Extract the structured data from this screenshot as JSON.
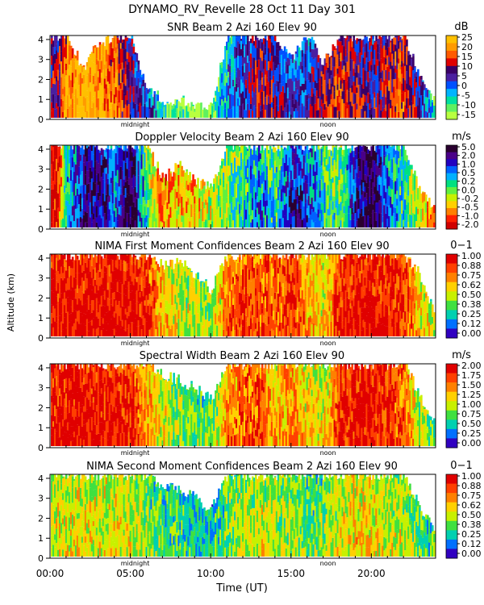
{
  "figure": {
    "title": "DYNAMO_RV_Revelle  28 Oct 11 Day 301",
    "ylabel": "Altitude (km)",
    "xlabel": "Time (UT)",
    "x_ticks": [
      "00:00",
      "05:00",
      "10:00",
      "15:00",
      "20:00"
    ],
    "y_ticks": [
      "0",
      "1",
      "2",
      "3",
      "4"
    ],
    "marker_labels": [
      "midnight",
      "noon"
    ]
  },
  "chart_data": [
    {
      "type": "heatmap",
      "title": "SNR Beam 2 Azi 160 Elev 90",
      "unit": "dB",
      "xlim": [
        0,
        24
      ],
      "ylim": [
        0,
        4.2
      ],
      "colorbar_labels": [
        "25",
        "20",
        "15",
        "10",
        "5",
        "0",
        "-5",
        "-10",
        "-15"
      ],
      "colors": [
        "#ffc000",
        "#ff9a00",
        "#ff5a00",
        "#e00000",
        "#3a0066",
        "#4a1fa0",
        "#0050ff",
        "#00b4ff",
        "#00e0a0",
        "#60f060",
        "#b8ff40"
      ],
      "profile": [
        {
          "x": 0.4,
          "top": 4.2,
          "v": 10
        },
        {
          "x": 1.0,
          "top": 4.2,
          "v": 20
        },
        {
          "x": 2.0,
          "top": 2.6,
          "v": 25
        },
        {
          "x": 3.0,
          "top": 3.8,
          "v": 22
        },
        {
          "x": 4.0,
          "top": 4.2,
          "v": 18
        },
        {
          "x": 5.0,
          "top": 4.2,
          "v": 8
        },
        {
          "x": 6.0,
          "top": 1.6,
          "v": 3
        },
        {
          "x": 7.0,
          "top": 0.9,
          "v": -5
        },
        {
          "x": 8.0,
          "top": 1.0,
          "v": -10
        },
        {
          "x": 9.0,
          "top": 0.8,
          "v": -12
        },
        {
          "x": 10.0,
          "top": 0.6,
          "v": -12
        },
        {
          "x": 11.0,
          "top": 4.2,
          "v": 0
        },
        {
          "x": 12.0,
          "top": 4.2,
          "v": 5
        },
        {
          "x": 13.0,
          "top": 4.2,
          "v": 12
        },
        {
          "x": 14.0,
          "top": 4.2,
          "v": 8
        },
        {
          "x": 15.0,
          "top": 3.0,
          "v": 3
        },
        {
          "x": 16.0,
          "top": 4.2,
          "v": 5
        },
        {
          "x": 17.0,
          "top": 2.8,
          "v": 12
        },
        {
          "x": 18.0,
          "top": 4.2,
          "v": 15
        },
        {
          "x": 19.0,
          "top": 4.2,
          "v": 10
        },
        {
          "x": 20.0,
          "top": 4.2,
          "v": 8
        },
        {
          "x": 21.0,
          "top": 4.2,
          "v": 12
        },
        {
          "x": 22.0,
          "top": 4.2,
          "v": 15
        },
        {
          "x": 23.0,
          "top": 2.0,
          "v": 5
        },
        {
          "x": 23.8,
          "top": 1.0,
          "v": -5
        }
      ]
    },
    {
      "type": "heatmap",
      "title": "Doppler Velocity Beam 2 Azi 160 Elev 90",
      "unit": "m/s",
      "xlim": [
        0,
        24
      ],
      "ylim": [
        0,
        4.2
      ],
      "colorbar_labels": [
        "5.0",
        "2.0",
        "1.0",
        "0.5",
        "0.2",
        "0.0",
        "-0.2",
        "-0.5",
        "-1.0",
        "-2.0"
      ],
      "colors": [
        "#2a0030",
        "#4a0088",
        "#2200c0",
        "#0060ff",
        "#00b0ff",
        "#00e080",
        "#60f040",
        "#c8f000",
        "#ffd000",
        "#ff8000",
        "#ff2000",
        "#d00000"
      ],
      "profile": [
        {
          "x": 0.4,
          "top": 4.2,
          "v": -1.5
        },
        {
          "x": 1.0,
          "top": 4.2,
          "v": 2.5
        },
        {
          "x": 2.0,
          "top": 4.2,
          "v": 4.0
        },
        {
          "x": 3.0,
          "top": 4.2,
          "v": 4.5
        },
        {
          "x": 4.0,
          "top": 4.2,
          "v": 3.0
        },
        {
          "x": 5.0,
          "top": 4.2,
          "v": 5.0
        },
        {
          "x": 6.0,
          "top": 4.2,
          "v": 1.5
        },
        {
          "x": 7.0,
          "top": 2.5,
          "v": -0.4
        },
        {
          "x": 8.0,
          "top": 3.2,
          "v": 0.3
        },
        {
          "x": 9.0,
          "top": 2.4,
          "v": 0.2
        },
        {
          "x": 10.0,
          "top": 2.0,
          "v": 1.0
        },
        {
          "x": 11.0,
          "top": 4.2,
          "v": 1.5
        },
        {
          "x": 12.0,
          "top": 4.2,
          "v": 2.0
        },
        {
          "x": 13.0,
          "top": 4.2,
          "v": 3.0
        },
        {
          "x": 14.0,
          "top": 4.2,
          "v": 1.8
        },
        {
          "x": 15.0,
          "top": 4.2,
          "v": 4.0
        },
        {
          "x": 16.0,
          "top": 4.2,
          "v": 3.5
        },
        {
          "x": 17.0,
          "top": 4.2,
          "v": 2.0
        },
        {
          "x": 18.0,
          "top": 4.2,
          "v": 1.5
        },
        {
          "x": 19.0,
          "top": 4.2,
          "v": 4.0
        },
        {
          "x": 20.0,
          "top": 4.2,
          "v": 5.0
        },
        {
          "x": 21.0,
          "top": 4.2,
          "v": 3.0
        },
        {
          "x": 22.0,
          "top": 4.2,
          "v": 2.0
        },
        {
          "x": 23.0,
          "top": 2.0,
          "v": 0.5
        },
        {
          "x": 23.8,
          "top": 1.2,
          "v": -0.5
        }
      ]
    },
    {
      "type": "heatmap",
      "title": "NIMA First Moment Confidences Beam 2 Azi 160 Elev 90",
      "unit": "0−1",
      "xlim": [
        0,
        24
      ],
      "ylim": [
        0,
        4.2
      ],
      "colorbar_labels": [
        "1.00",
        "0.88",
        "0.75",
        "0.62",
        "0.50",
        "0.38",
        "0.25",
        "0.12",
        "0.00"
      ],
      "colors": [
        "#e00000",
        "#ff4000",
        "#ff8000",
        "#ffd000",
        "#c8f000",
        "#40e040",
        "#00d0b0",
        "#0070ff",
        "#3000c0"
      ],
      "profile": [
        {
          "x": 0.4,
          "top": 4.2,
          "v": 0.95
        },
        {
          "x": 1.0,
          "top": 4.2,
          "v": 0.98
        },
        {
          "x": 2.0,
          "top": 4.2,
          "v": 0.98
        },
        {
          "x": 3.0,
          "top": 4.2,
          "v": 0.98
        },
        {
          "x": 4.0,
          "top": 4.2,
          "v": 0.97
        },
        {
          "x": 5.0,
          "top": 4.2,
          "v": 0.97
        },
        {
          "x": 6.0,
          "top": 4.2,
          "v": 0.9
        },
        {
          "x": 7.0,
          "top": 3.6,
          "v": 0.65
        },
        {
          "x": 8.0,
          "top": 3.8,
          "v": 0.55
        },
        {
          "x": 9.0,
          "top": 3.2,
          "v": 0.5
        },
        {
          "x": 10.0,
          "top": 2.4,
          "v": 0.45
        },
        {
          "x": 11.0,
          "top": 4.2,
          "v": 0.8
        },
        {
          "x": 12.0,
          "top": 4.2,
          "v": 0.85
        },
        {
          "x": 13.0,
          "top": 4.2,
          "v": 0.85
        },
        {
          "x": 14.0,
          "top": 4.2,
          "v": 0.8
        },
        {
          "x": 15.0,
          "top": 4.2,
          "v": 0.9
        },
        {
          "x": 16.0,
          "top": 4.2,
          "v": 0.7
        },
        {
          "x": 17.0,
          "top": 4.2,
          "v": 0.6
        },
        {
          "x": 18.0,
          "top": 4.2,
          "v": 0.92
        },
        {
          "x": 19.0,
          "top": 4.2,
          "v": 0.96
        },
        {
          "x": 20.0,
          "top": 4.2,
          "v": 0.97
        },
        {
          "x": 21.0,
          "top": 4.2,
          "v": 0.95
        },
        {
          "x": 22.0,
          "top": 4.2,
          "v": 0.9
        },
        {
          "x": 23.0,
          "top": 3.2,
          "v": 0.6
        },
        {
          "x": 23.8,
          "top": 1.5,
          "v": 0.5
        }
      ]
    },
    {
      "type": "heatmap",
      "title": "Spectral Width Beam 2 Azi 160 Elev 90",
      "unit": "m/s",
      "xlim": [
        0,
        24
      ],
      "ylim": [
        0,
        4.2
      ],
      "colorbar_labels": [
        "2.00",
        "1.75",
        "1.50",
        "1.25",
        "1.00",
        "0.75",
        "0.50",
        "0.25",
        "0.00"
      ],
      "colors": [
        "#e00000",
        "#ff4000",
        "#ff8000",
        "#ffd000",
        "#c8f000",
        "#40e040",
        "#00d0b0",
        "#0070ff",
        "#3000c0"
      ],
      "profile": [
        {
          "x": 0.4,
          "top": 4.2,
          "v": 1.9
        },
        {
          "x": 1.0,
          "top": 4.2,
          "v": 1.95
        },
        {
          "x": 2.0,
          "top": 4.2,
          "v": 1.95
        },
        {
          "x": 3.0,
          "top": 4.2,
          "v": 1.9
        },
        {
          "x": 4.0,
          "top": 4.2,
          "v": 1.85
        },
        {
          "x": 5.0,
          "top": 4.2,
          "v": 1.8
        },
        {
          "x": 6.0,
          "top": 4.2,
          "v": 1.4
        },
        {
          "x": 7.0,
          "top": 3.6,
          "v": 1.1
        },
        {
          "x": 8.0,
          "top": 3.4,
          "v": 0.9
        },
        {
          "x": 9.0,
          "top": 3.0,
          "v": 0.85
        },
        {
          "x": 10.0,
          "top": 2.4,
          "v": 0.8
        },
        {
          "x": 11.0,
          "top": 4.2,
          "v": 1.5
        },
        {
          "x": 12.0,
          "top": 4.2,
          "v": 1.6
        },
        {
          "x": 13.0,
          "top": 4.2,
          "v": 1.7
        },
        {
          "x": 14.0,
          "top": 4.2,
          "v": 1.3
        },
        {
          "x": 15.0,
          "top": 4.2,
          "v": 1.5
        },
        {
          "x": 16.0,
          "top": 4.2,
          "v": 1.2
        },
        {
          "x": 17.0,
          "top": 4.2,
          "v": 1.1
        },
        {
          "x": 18.0,
          "top": 4.2,
          "v": 1.8
        },
        {
          "x": 19.0,
          "top": 4.2,
          "v": 1.9
        },
        {
          "x": 20.0,
          "top": 4.2,
          "v": 1.9
        },
        {
          "x": 21.0,
          "top": 4.2,
          "v": 1.8
        },
        {
          "x": 22.0,
          "top": 4.2,
          "v": 1.6
        },
        {
          "x": 23.0,
          "top": 2.6,
          "v": 1.0
        },
        {
          "x": 23.8,
          "top": 1.4,
          "v": 0.8
        }
      ]
    },
    {
      "type": "heatmap",
      "title": "NIMA Second Moment Confidences Beam 2 Azi 160 Elev 90",
      "unit": "0−1",
      "xlim": [
        0,
        24
      ],
      "ylim": [
        0,
        4.2
      ],
      "colorbar_labels": [
        "1.00",
        "0.88",
        "0.75",
        "0.62",
        "0.50",
        "0.38",
        "0.25",
        "0.12",
        "0.00"
      ],
      "colors": [
        "#e00000",
        "#ff4000",
        "#ff8000",
        "#ffd000",
        "#c8f000",
        "#40e040",
        "#00d0b0",
        "#0070ff",
        "#3000c0"
      ],
      "profile": [
        {
          "x": 0.4,
          "top": 4.2,
          "v": 0.55
        },
        {
          "x": 1.0,
          "top": 4.2,
          "v": 0.58
        },
        {
          "x": 2.0,
          "top": 4.2,
          "v": 0.6
        },
        {
          "x": 3.0,
          "top": 4.2,
          "v": 0.55
        },
        {
          "x": 4.0,
          "top": 4.2,
          "v": 0.6
        },
        {
          "x": 5.0,
          "top": 4.2,
          "v": 0.55
        },
        {
          "x": 6.0,
          "top": 4.2,
          "v": 0.45
        },
        {
          "x": 7.0,
          "top": 3.6,
          "v": 0.4
        },
        {
          "x": 8.0,
          "top": 3.4,
          "v": 0.35
        },
        {
          "x": 9.0,
          "top": 3.0,
          "v": 0.3
        },
        {
          "x": 10.0,
          "top": 2.4,
          "v": 0.3
        },
        {
          "x": 11.0,
          "top": 4.2,
          "v": 0.45
        },
        {
          "x": 12.0,
          "top": 4.2,
          "v": 0.5
        },
        {
          "x": 13.0,
          "top": 4.2,
          "v": 0.55
        },
        {
          "x": 14.0,
          "top": 4.2,
          "v": 0.5
        },
        {
          "x": 15.0,
          "top": 4.2,
          "v": 0.45
        },
        {
          "x": 16.0,
          "top": 4.2,
          "v": 0.4
        },
        {
          "x": 17.0,
          "top": 4.2,
          "v": 0.45
        },
        {
          "x": 18.0,
          "top": 4.2,
          "v": 0.55
        },
        {
          "x": 19.0,
          "top": 4.2,
          "v": 0.62
        },
        {
          "x": 20.0,
          "top": 4.2,
          "v": 0.6
        },
        {
          "x": 21.0,
          "top": 4.2,
          "v": 0.55
        },
        {
          "x": 22.0,
          "top": 4.2,
          "v": 0.5
        },
        {
          "x": 23.0,
          "top": 2.6,
          "v": 0.4
        },
        {
          "x": 23.8,
          "top": 1.4,
          "v": 0.35
        }
      ]
    }
  ]
}
